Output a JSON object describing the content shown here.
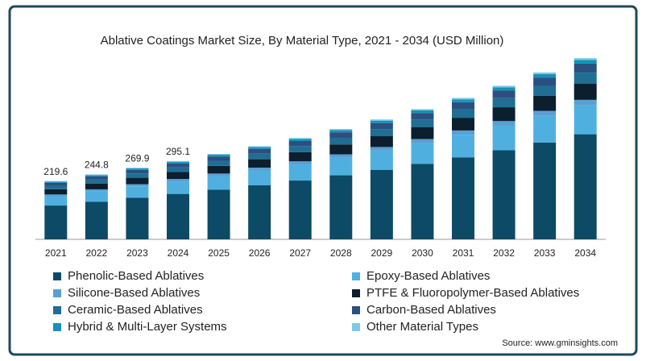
{
  "chart_data": {
    "type": "stacked_bar",
    "title": "Ablative Coatings Market Size, By Material Type, 2021 - 2034 (USD Million)",
    "categories": [
      "2021",
      "2022",
      "2023",
      "2024",
      "2025",
      "2026",
      "2027",
      "2028",
      "2029",
      "2030",
      "2031",
      "2032",
      "2033",
      "2034"
    ],
    "totals": [
      219.6,
      244.8,
      269.9,
      295.1
    ],
    "series": [
      {
        "name": "Phenolic-Based Ablatives",
        "color": "#0d4a66",
        "values": [
          127.4,
          142.0,
          156.5,
          171.2,
          186.8,
          203.6,
          221.6,
          241.3,
          262.2,
          284.8,
          309.1,
          335.8,
          364.8,
          396.1
        ]
      },
      {
        "name": "Epoxy-Based Ablatives",
        "color": "#4fb0e0",
        "values": [
          35.1,
          39.2,
          43.2,
          47.2,
          51.5,
          56.2,
          61.1,
          66.6,
          72.3,
          78.6,
          85.3,
          92.6,
          100.6,
          109.3
        ]
      },
      {
        "name": "Silicone-Based Ablatives",
        "color": "#5a9fd4",
        "values": [
          6.6,
          7.3,
          8.1,
          8.9,
          9.7,
          10.5,
          11.5,
          12.5,
          13.6,
          14.7,
          16.0,
          17.4,
          18.9,
          20.5
        ]
      },
      {
        "name": "PTFE & Fluoropolymer-Based Ablatives",
        "color": "#0b1f2e",
        "values": [
          19.8,
          22.0,
          24.3,
          26.6,
          29.0,
          31.6,
          34.4,
          37.4,
          40.7,
          44.2,
          48.0,
          52.1,
          56.6,
          61.5
        ]
      },
      {
        "name": "Ceramic-Based Ablatives",
        "color": "#1f6e94",
        "values": [
          13.2,
          14.7,
          16.2,
          17.7,
          19.3,
          21.1,
          22.9,
          25.0,
          27.1,
          29.5,
          32.0,
          34.7,
          37.7,
          41.0
        ]
      },
      {
        "name": "Carbon-Based Ablatives",
        "color": "#2a5080",
        "values": [
          11.0,
          12.2,
          13.5,
          14.8,
          16.1,
          17.6,
          19.1,
          20.8,
          22.6,
          24.6,
          26.7,
          29.0,
          31.5,
          34.2
        ]
      },
      {
        "name": "Hybrid & Multi-Layer Systems",
        "color": "#1592b8",
        "values": [
          4.4,
          4.9,
          5.4,
          5.9,
          6.4,
          7.0,
          7.6,
          8.3,
          9.0,
          9.8,
          10.7,
          11.6,
          12.6,
          13.7
        ]
      },
      {
        "name": "Other Material Types",
        "color": "#7fc8ea",
        "values": [
          2.2,
          2.4,
          2.7,
          3.0,
          3.2,
          3.5,
          3.8,
          4.2,
          4.5,
          4.9,
          5.3,
          5.8,
          6.3,
          6.8
        ]
      }
    ],
    "ylim": [
      0,
      720
    ],
    "source": "Source: www.gminsights.com"
  }
}
